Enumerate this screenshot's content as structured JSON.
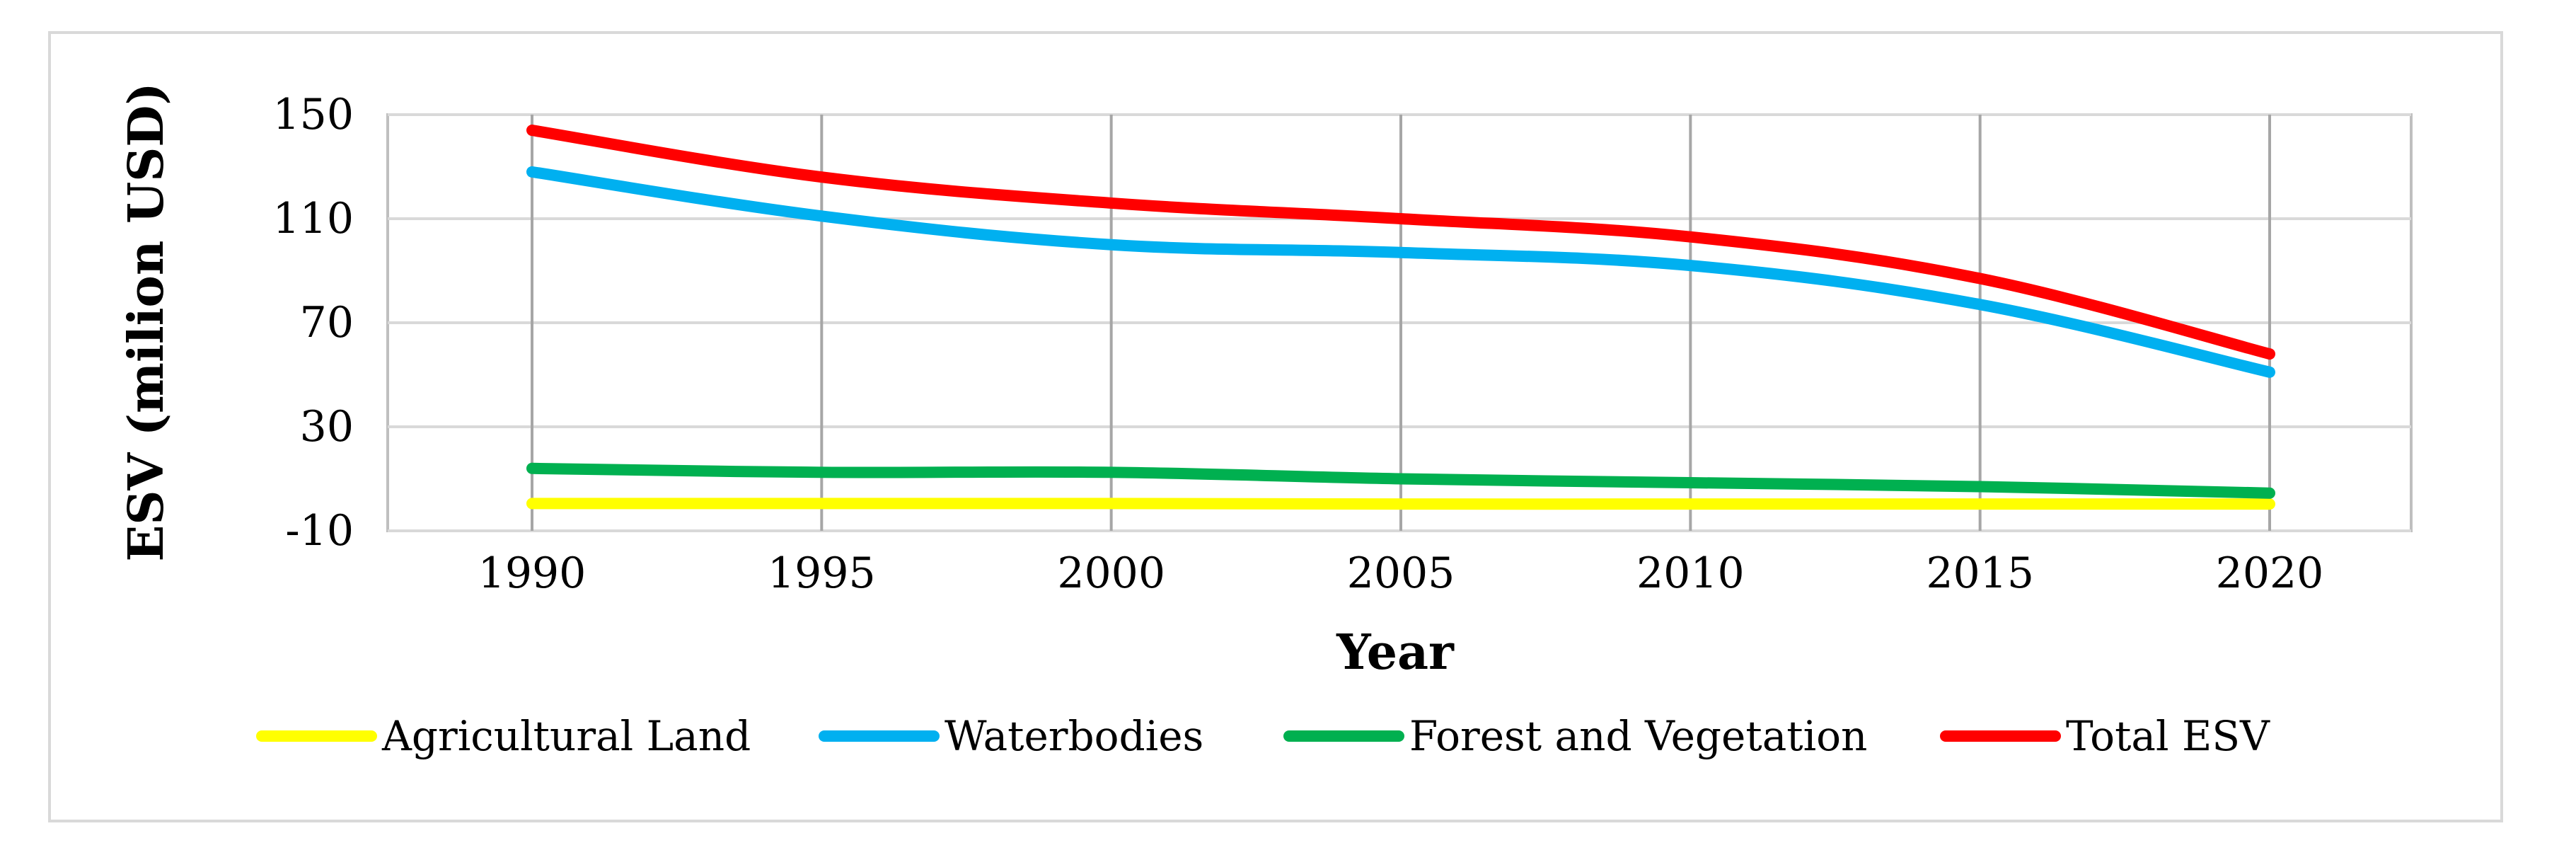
{
  "chart_data": {
    "type": "line",
    "title": "",
    "xlabel": "Year",
    "ylabel": "ESV (milion USD)",
    "x": [
      1990,
      1995,
      2000,
      2005,
      2010,
      2015,
      2020
    ],
    "x_tick_labels": [
      "1990",
      "1995",
      "2000",
      "2005",
      "2010",
      "2015",
      "2020"
    ],
    "ylim": [
      -10,
      150
    ],
    "y_ticks": [
      -10,
      30,
      70,
      110,
      150
    ],
    "y_tick_labels": [
      "-10",
      "30",
      "70",
      "110",
      "150"
    ],
    "grid": true,
    "legend_position": "bottom",
    "series": [
      {
        "name": "Agricultural Land",
        "color": "#ffff00",
        "values": [
          0.5,
          0.5,
          0.5,
          0.3,
          0.3,
          0.3,
          0.3
        ]
      },
      {
        "name": "Waterbodies",
        "color": "#00b0f0",
        "values": [
          128,
          111,
          100,
          97,
          92,
          77,
          51
        ]
      },
      {
        "name": "Forest and Vegetation",
        "color": "#00b050",
        "values": [
          14,
          12.5,
          12.5,
          10,
          8.5,
          7,
          4.5
        ]
      },
      {
        "name": "Total ESV",
        "color": "#ff0000",
        "values": [
          144,
          126,
          116,
          110,
          103,
          87,
          58
        ]
      }
    ]
  }
}
